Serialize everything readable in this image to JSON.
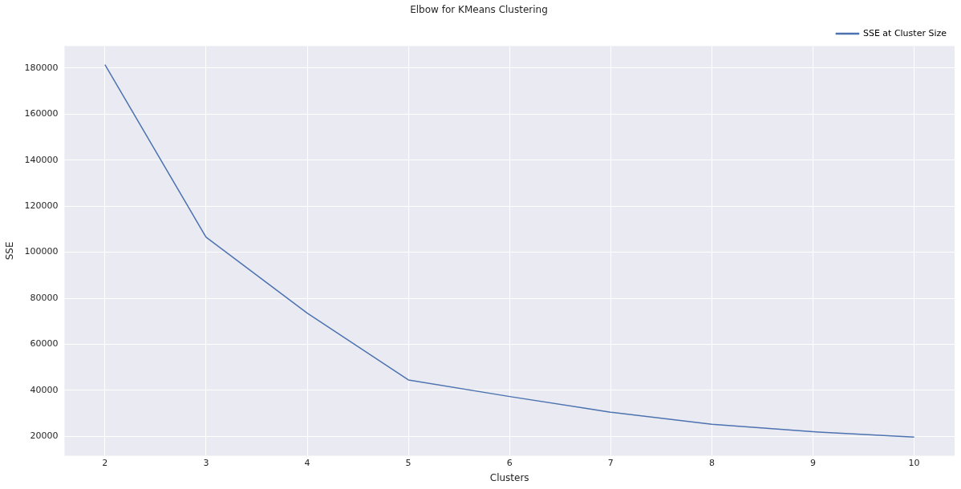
{
  "chart_data": {
    "type": "line",
    "title": "Elbow for KMeans Clustering",
    "xlabel": "Clusters",
    "ylabel": "SSE",
    "x": [
      2,
      3,
      4,
      5,
      6,
      7,
      8,
      9,
      10
    ],
    "series": [
      {
        "name": "SSE at Cluster Size",
        "color": "#4c72b0",
        "values": [
          181500,
          106500,
          73500,
          44500,
          37300,
          30500,
          25200,
          22000,
          19700
        ]
      }
    ],
    "xlim": [
      1.6,
      10.4
    ],
    "xticks": [
      2,
      3,
      4,
      5,
      6,
      7,
      8,
      9,
      10
    ],
    "ylim": [
      11600,
      189600
    ],
    "yticks": [
      20000,
      40000,
      60000,
      80000,
      100000,
      120000,
      140000,
      160000,
      180000
    ],
    "grid": true,
    "legend": "top right",
    "marker": "none",
    "line_style": "solid"
  }
}
